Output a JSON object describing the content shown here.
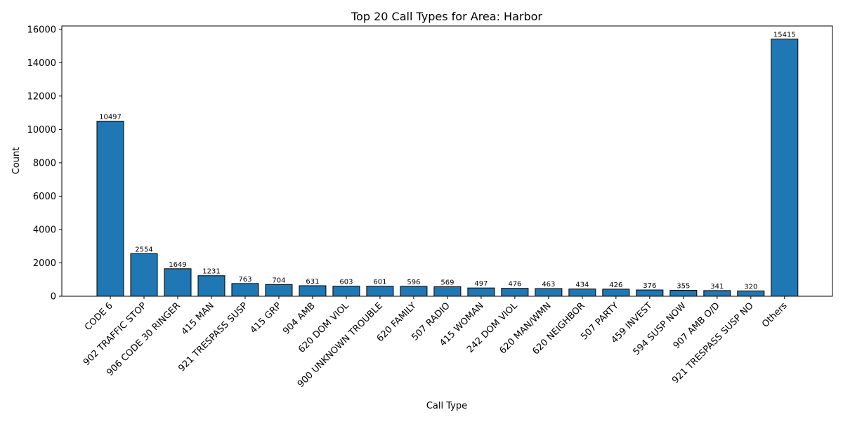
{
  "chart_data": {
    "type": "bar",
    "title": "Top 20 Call Types for Area: Harbor",
    "xlabel": "Call Type",
    "ylabel": "Count",
    "ylim": [
      0,
      16200
    ],
    "yticks": [
      0,
      2000,
      4000,
      6000,
      8000,
      10000,
      12000,
      14000,
      16000
    ],
    "bar_color": "#1f77b4",
    "edge_color": "#000000",
    "grid": false,
    "legend": false,
    "data_labels": true,
    "categories": [
      "CODE 6",
      "902 TRAFFIC STOP",
      "906 CODE 30 RINGER",
      "415 MAN",
      "921 TRESPASS SUSP",
      "415 GRP",
      "904 AMB",
      "620 DOM VIOL",
      "900 UNKNOWN TROUBLE",
      "620 FAMILY",
      "507 RADIO",
      "415 WOMAN",
      "242 DOM VIOL",
      "620 MAN/WMN",
      "620 NEIGHBOR",
      "507 PARTY",
      "459 INVEST",
      "594 SUSP NOW",
      "907 AMB O/D",
      "921 TRESPASS SUSP NO",
      "Others"
    ],
    "values": [
      10497,
      2554,
      1649,
      1231,
      763,
      704,
      631,
      603,
      601,
      596,
      569,
      497,
      476,
      463,
      434,
      426,
      376,
      355,
      341,
      320,
      15415
    ]
  }
}
